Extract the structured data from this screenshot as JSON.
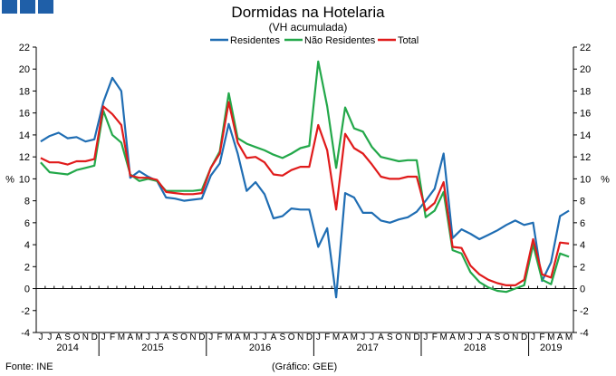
{
  "chart_data": {
    "type": "line",
    "title": "Dormidas na Hotelaria",
    "subtitle": "(VH acumulada)",
    "ylabel_left": "%",
    "ylabel_right": "%",
    "ylim": [
      -4,
      22
    ],
    "ytick_step": 2,
    "grid": false,
    "legend_position": "top-center",
    "x_months": [
      "J",
      "J",
      "A",
      "S",
      "O",
      "N",
      "D",
      "J",
      "F",
      "M",
      "A",
      "M",
      "J",
      "J",
      "A",
      "S",
      "O",
      "N",
      "D",
      "J",
      "F",
      "M",
      "A",
      "M",
      "J",
      "J",
      "A",
      "S",
      "O",
      "N",
      "D",
      "J",
      "F",
      "M",
      "A",
      "M",
      "J",
      "J",
      "A",
      "S",
      "O",
      "N",
      "D",
      "J",
      "F",
      "M",
      "A",
      "M",
      "J",
      "J",
      "A",
      "S",
      "O",
      "N",
      "D",
      "J",
      "F",
      "M",
      "A",
      "M"
    ],
    "year_labels": [
      {
        "label": "2014",
        "start": 0,
        "end": 6
      },
      {
        "label": "2015",
        "start": 7,
        "end": 18
      },
      {
        "label": "2016",
        "start": 19,
        "end": 30
      },
      {
        "label": "2017",
        "start": 31,
        "end": 42
      },
      {
        "label": "2018",
        "start": 43,
        "end": 54
      },
      {
        "label": "2019",
        "start": 55,
        "end": 59
      }
    ],
    "series": [
      {
        "name": "Residentes",
        "color": "#1f6db3",
        "values": [
          13.4,
          13.9,
          14.2,
          13.7,
          13.8,
          13.4,
          13.6,
          17.0,
          19.2,
          18.0,
          10.1,
          10.7,
          10.2,
          9.8,
          8.3,
          8.2,
          8.0,
          8.1,
          8.2,
          10.3,
          11.4,
          15.0,
          12.3,
          8.9,
          9.7,
          8.6,
          6.4,
          6.6,
          7.3,
          7.2,
          7.2,
          3.8,
          5.5,
          -0.8,
          8.7,
          8.3,
          6.9,
          6.9,
          6.2,
          6.0,
          6.3,
          6.5,
          7.0,
          8.0,
          9.1,
          12.3,
          4.6,
          5.4,
          5.0,
          4.5,
          4.9,
          5.3,
          5.8,
          6.2,
          5.8,
          6.0,
          0.7,
          2.4,
          6.6,
          7.1
        ]
      },
      {
        "name": "Não Residentes",
        "color": "#23a84a",
        "values": [
          11.5,
          10.6,
          10.5,
          10.4,
          10.8,
          11.0,
          11.2,
          16.2,
          14.0,
          13.3,
          10.4,
          9.8,
          10.0,
          9.8,
          8.9,
          8.9,
          8.9,
          8.9,
          9.0,
          11.0,
          12.5,
          17.8,
          13.7,
          13.2,
          12.9,
          12.6,
          12.2,
          11.9,
          12.3,
          12.8,
          13.0,
          20.7,
          16.6,
          11.0,
          16.5,
          14.6,
          14.3,
          12.9,
          12.0,
          11.8,
          11.6,
          11.7,
          11.7,
          6.5,
          7.1,
          8.8,
          3.5,
          3.2,
          1.5,
          0.6,
          0.1,
          -0.2,
          -0.3,
          0.0,
          0.3,
          4.0,
          0.8,
          0.4,
          3.2,
          2.9
        ]
      },
      {
        "name": "Total",
        "color": "#e01b1b",
        "values": [
          11.9,
          11.5,
          11.5,
          11.3,
          11.6,
          11.6,
          11.8,
          16.6,
          15.9,
          14.9,
          10.3,
          10.1,
          10.1,
          9.9,
          8.8,
          8.7,
          8.6,
          8.6,
          8.7,
          11.0,
          12.3,
          17.0,
          13.3,
          11.9,
          12.0,
          11.5,
          10.4,
          10.3,
          10.8,
          11.1,
          11.1,
          14.9,
          12.6,
          7.2,
          14.1,
          12.8,
          12.3,
          11.3,
          10.2,
          10.0,
          10.0,
          10.2,
          10.2,
          7.1,
          7.8,
          9.7,
          3.8,
          3.7,
          2.1,
          1.3,
          0.8,
          0.5,
          0.3,
          0.3,
          0.8,
          4.5,
          1.3,
          1.0,
          4.2,
          4.1
        ]
      }
    ]
  },
  "footer": {
    "source": "Fonte: INE",
    "credit": "(Gráfico: GEE)"
  },
  "brand_color": "#1f5fa8"
}
